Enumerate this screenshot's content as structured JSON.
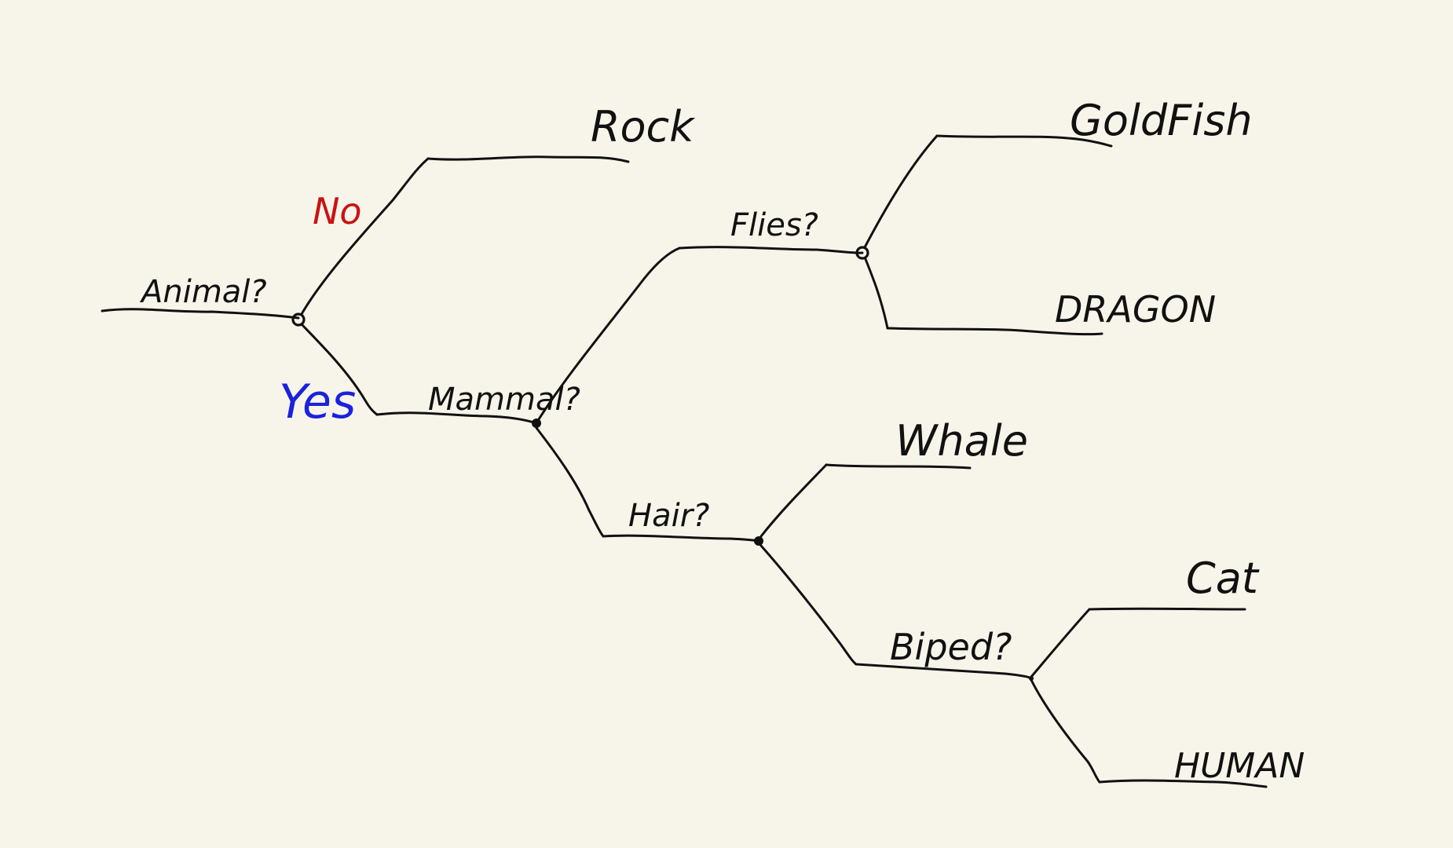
{
  "diagram": {
    "type": "decision-tree",
    "colors": {
      "background": "#f7f5ea",
      "ink": "#111111",
      "no_branch": "#cc1111",
      "yes_branch": "#1a22dd"
    },
    "root": {
      "question": "Animal?",
      "no_label": "No",
      "yes_label": "Yes",
      "no_leaf": "Rock",
      "yes_node": {
        "question": "Mammal?",
        "upper_node": {
          "question": "Flies?",
          "upper_leaf": "GoldFish",
          "lower_leaf": "DRAGON"
        },
        "lower_node": {
          "question": "Hair?",
          "upper_leaf": "Whale",
          "lower_node": {
            "question": "Biped?",
            "upper_leaf": "Cat",
            "lower_leaf": "HUMAN"
          }
        }
      }
    }
  }
}
